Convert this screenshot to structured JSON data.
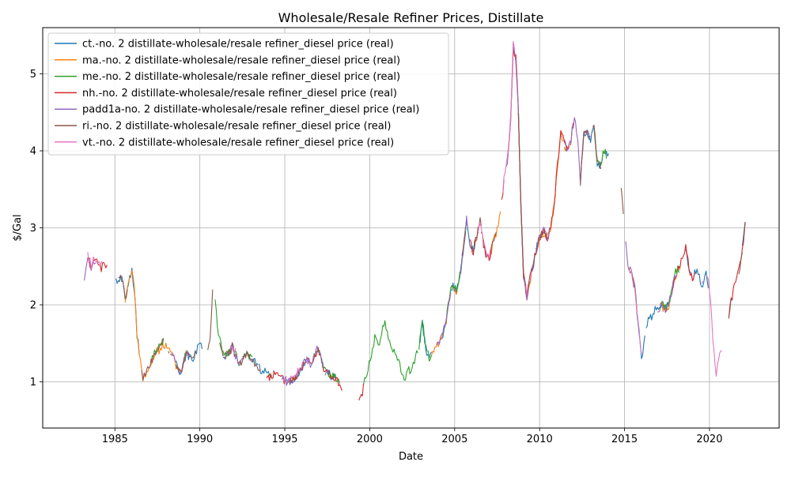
{
  "chart_data": {
    "type": "line",
    "title": "Wholesale/Resale Refiner Prices, Distillate",
    "xlabel": "Date",
    "ylabel": "$/Gal",
    "xlim": [
      1980.75,
      2024.1
    ],
    "ylim": [
      0.4,
      5.6
    ],
    "x_ticks": [
      1985,
      1990,
      1995,
      2000,
      2005,
      2010,
      2015,
      2020
    ],
    "y_ticks": [
      1,
      2,
      3,
      4,
      5
    ],
    "grid": true,
    "legend_position": "top-left",
    "base_series": [
      [
        1983.2,
        2.36
      ],
      [
        1983.4,
        2.6
      ],
      [
        1983.6,
        2.5
      ],
      [
        1983.8,
        2.58
      ],
      [
        1984.0,
        2.55
      ],
      [
        1984.2,
        2.48
      ],
      [
        1984.4,
        2.58
      ],
      [
        1984.6,
        2.42
      ],
      [
        1984.8,
        2.32
      ],
      [
        1985.0,
        2.38
      ],
      [
        1985.2,
        2.3
      ],
      [
        1985.4,
        2.35
      ],
      [
        1985.6,
        2.08
      ],
      [
        1985.8,
        2.28
      ],
      [
        1986.0,
        2.45
      ],
      [
        1986.15,
        2.2
      ],
      [
        1986.3,
        1.62
      ],
      [
        1986.5,
        1.3
      ],
      [
        1986.65,
        1.02
      ],
      [
        1986.8,
        1.12
      ],
      [
        1987.0,
        1.2
      ],
      [
        1987.2,
        1.28
      ],
      [
        1987.4,
        1.38
      ],
      [
        1987.6,
        1.42
      ],
      [
        1987.8,
        1.5
      ],
      [
        1988.0,
        1.47
      ],
      [
        1988.2,
        1.42
      ],
      [
        1988.4,
        1.35
      ],
      [
        1988.6,
        1.22
      ],
      [
        1988.8,
        1.12
      ],
      [
        1989.0,
        1.22
      ],
      [
        1989.2,
        1.38
      ],
      [
        1989.4,
        1.32
      ],
      [
        1989.6,
        1.28
      ],
      [
        1989.8,
        1.4
      ],
      [
        1990.0,
        1.5
      ],
      [
        1990.2,
        1.42
      ],
      [
        1990.4,
        1.3
      ],
      [
        1990.6,
        1.55
      ],
      [
        1990.75,
        2.25
      ],
      [
        1990.9,
        2.05
      ],
      [
        1991.1,
        1.6
      ],
      [
        1991.3,
        1.38
      ],
      [
        1991.5,
        1.34
      ],
      [
        1991.7,
        1.36
      ],
      [
        1991.9,
        1.45
      ],
      [
        1992.1,
        1.35
      ],
      [
        1992.3,
        1.22
      ],
      [
        1992.5,
        1.3
      ],
      [
        1992.7,
        1.36
      ],
      [
        1992.9,
        1.32
      ],
      [
        1993.1,
        1.28
      ],
      [
        1993.3,
        1.24
      ],
      [
        1993.5,
        1.18
      ],
      [
        1993.7,
        1.15
      ],
      [
        1993.9,
        1.12
      ],
      [
        1994.1,
        1.06
      ],
      [
        1994.3,
        1.08
      ],
      [
        1994.5,
        1.1
      ],
      [
        1994.7,
        1.05
      ],
      [
        1994.9,
        1.02
      ],
      [
        1995.1,
        1.0
      ],
      [
        1995.3,
        1.02
      ],
      [
        1995.5,
        1.05
      ],
      [
        1995.7,
        1.08
      ],
      [
        1995.9,
        1.15
      ],
      [
        1996.1,
        1.22
      ],
      [
        1996.3,
        1.3
      ],
      [
        1996.5,
        1.22
      ],
      [
        1996.7,
        1.3
      ],
      [
        1996.9,
        1.42
      ],
      [
        1997.1,
        1.35
      ],
      [
        1997.3,
        1.15
      ],
      [
        1997.5,
        1.12
      ],
      [
        1997.7,
        1.08
      ],
      [
        1997.9,
        1.05
      ],
      [
        1998.1,
        1.0
      ],
      [
        1998.3,
        0.9
      ],
      [
        1998.5,
        0.85
      ],
      [
        1998.7,
        0.8
      ],
      [
        1998.9,
        0.76
      ],
      [
        1999.1,
        0.7
      ],
      [
        1999.3,
        0.7
      ],
      [
        1999.5,
        0.82
      ],
      [
        1999.7,
        0.98
      ],
      [
        1999.9,
        1.15
      ],
      [
        2000.1,
        1.35
      ],
      [
        2000.3,
        1.55
      ],
      [
        2000.5,
        1.42
      ],
      [
        2000.7,
        1.62
      ],
      [
        2000.9,
        1.75
      ],
      [
        2001.1,
        1.55
      ],
      [
        2001.3,
        1.42
      ],
      [
        2001.5,
        1.35
      ],
      [
        2001.7,
        1.25
      ],
      [
        2001.9,
        1.08
      ],
      [
        2002.1,
        1.05
      ],
      [
        2002.3,
        1.12
      ],
      [
        2002.5,
        1.18
      ],
      [
        2002.7,
        1.3
      ],
      [
        2002.9,
        1.42
      ],
      [
        2003.1,
        1.78
      ],
      [
        2003.3,
        1.42
      ],
      [
        2003.5,
        1.3
      ],
      [
        2003.7,
        1.38
      ],
      [
        2003.9,
        1.45
      ],
      [
        2004.1,
        1.52
      ],
      [
        2004.3,
        1.62
      ],
      [
        2004.5,
        1.8
      ],
      [
        2004.7,
        2.1
      ],
      [
        2004.9,
        2.25
      ],
      [
        2005.1,
        2.15
      ],
      [
        2005.3,
        2.35
      ],
      [
        2005.5,
        2.7
      ],
      [
        2005.7,
        3.1
      ],
      [
        2005.9,
        2.8
      ],
      [
        2006.1,
        2.7
      ],
      [
        2006.3,
        2.9
      ],
      [
        2006.5,
        3.1
      ],
      [
        2006.7,
        2.8
      ],
      [
        2006.9,
        2.6
      ],
      [
        2007.1,
        2.65
      ],
      [
        2007.3,
        2.85
      ],
      [
        2007.5,
        3.0
      ],
      [
        2007.7,
        3.2
      ],
      [
        2007.9,
        3.6
      ],
      [
        2008.1,
        3.85
      ],
      [
        2008.3,
        4.4
      ],
      [
        2008.45,
        5.38
      ],
      [
        2008.6,
        5.2
      ],
      [
        2008.75,
        4.55
      ],
      [
        2008.9,
        3.3
      ],
      [
        2009.05,
        2.4
      ],
      [
        2009.25,
        2.1
      ],
      [
        2009.45,
        2.35
      ],
      [
        2009.65,
        2.55
      ],
      [
        2009.85,
        2.75
      ],
      [
        2010.05,
        2.9
      ],
      [
        2010.25,
        2.95
      ],
      [
        2010.45,
        2.88
      ],
      [
        2010.65,
        3.0
      ],
      [
        2010.85,
        3.3
      ],
      [
        2011.05,
        3.8
      ],
      [
        2011.25,
        4.25
      ],
      [
        2011.45,
        4.1
      ],
      [
        2011.65,
        4.0
      ],
      [
        2011.85,
        4.15
      ],
      [
        2012.05,
        4.45
      ],
      [
        2012.25,
        4.1
      ],
      [
        2012.4,
        3.6
      ],
      [
        2012.6,
        4.2
      ],
      [
        2012.8,
        4.25
      ],
      [
        2013.0,
        4.15
      ],
      [
        2013.2,
        4.3
      ],
      [
        2013.4,
        3.85
      ],
      [
        2013.6,
        3.8
      ],
      [
        2013.8,
        4.0
      ],
      [
        2014.0,
        3.9
      ],
      [
        2014.2,
        3.95
      ],
      [
        2014.4,
        3.8
      ],
      [
        2014.6,
        3.72
      ],
      [
        2014.8,
        3.5
      ],
      [
        2015.0,
        2.95
      ],
      [
        2015.2,
        2.55
      ],
      [
        2015.4,
        2.4
      ],
      [
        2015.6,
        2.2
      ],
      [
        2015.8,
        1.75
      ],
      [
        2016.0,
        1.3
      ],
      [
        2016.2,
        1.55
      ],
      [
        2016.4,
        1.85
      ],
      [
        2016.6,
        1.8
      ],
      [
        2016.8,
        1.95
      ],
      [
        2017.0,
        1.95
      ],
      [
        2017.2,
        2.0
      ],
      [
        2017.4,
        1.95
      ],
      [
        2017.6,
        2.0
      ],
      [
        2017.8,
        2.2
      ],
      [
        2018.0,
        2.4
      ],
      [
        2018.2,
        2.45
      ],
      [
        2018.4,
        2.6
      ],
      [
        2018.6,
        2.75
      ],
      [
        2018.8,
        2.5
      ],
      [
        2019.0,
        2.3
      ],
      [
        2019.2,
        2.45
      ],
      [
        2019.4,
        2.35
      ],
      [
        2019.6,
        2.25
      ],
      [
        2019.8,
        2.4
      ],
      [
        2020.0,
        2.2
      ],
      [
        2020.2,
        1.55
      ],
      [
        2020.4,
        1.05
      ],
      [
        2020.6,
        1.35
      ],
      [
        2020.8,
        1.45
      ],
      [
        2021.0,
        1.65
      ],
      [
        2021.2,
        1.95
      ],
      [
        2021.4,
        2.2
      ],
      [
        2021.6,
        2.35
      ],
      [
        2021.8,
        2.5
      ],
      [
        2022.0,
        2.85
      ],
      [
        2022.1,
        3.05
      ]
    ],
    "series": [
      {
        "name": "ct.-no. 2 distillate-wholesale/resale refiner_diesel price (real)",
        "color": "#1f77b4",
        "seed": 11,
        "keep": 0.27,
        "bias": 0.0
      },
      {
        "name": "ma.-no. 2 distillate-wholesale/resale refiner_diesel price (real)",
        "color": "#ff7f0e",
        "seed": 23,
        "keep": 0.27,
        "bias": -0.01
      },
      {
        "name": "me.-no. 2 distillate-wholesale/resale refiner_diesel price (real)",
        "color": "#2ca02c",
        "seed": 37,
        "keep": 0.27,
        "bias": 0.02
      },
      {
        "name": "nh.-no. 2 distillate-wholesale/resale refiner_diesel price (real)",
        "color": "#d62728",
        "seed": 41,
        "keep": 0.3,
        "bias": 0.0
      },
      {
        "name": "padd1a-no. 2 distillate-wholesale/resale refiner_diesel price (real)",
        "color": "#9467bd",
        "seed": 53,
        "keep": 0.3,
        "bias": 0.0
      },
      {
        "name": "ri.-no. 2 distillate-wholesale/resale refiner_diesel price (real)",
        "color": "#8c564b",
        "seed": 67,
        "keep": 0.35,
        "bias": 0.0
      },
      {
        "name": "vt.-no. 2 distillate-wholesale/resale refiner_diesel price (real)",
        "color": "#e377c2",
        "seed": 79,
        "keep": 0.22,
        "bias": 0.03
      }
    ]
  }
}
